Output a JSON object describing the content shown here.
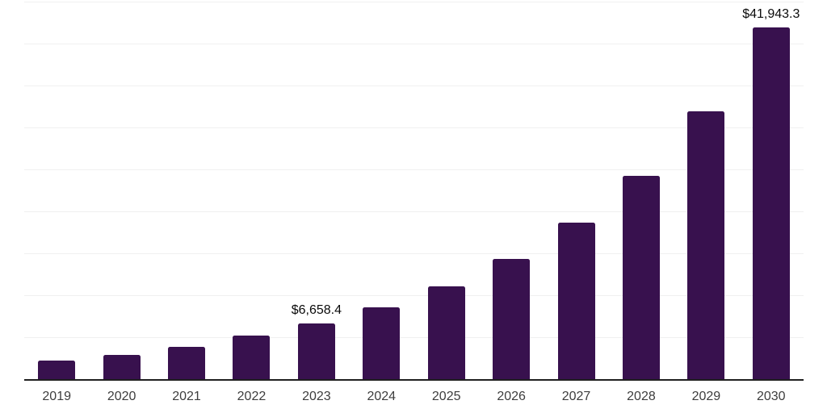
{
  "chart_data": {
    "type": "bar",
    "categories": [
      "2019",
      "2020",
      "2021",
      "2022",
      "2023",
      "2024",
      "2025",
      "2026",
      "2027",
      "2028",
      "2029",
      "2030"
    ],
    "values": [
      2210,
      2880,
      3840,
      5180,
      6658.4,
      8540,
      11040,
      14300,
      18620,
      24280,
      31960,
      41943.3
    ],
    "data_labels": {
      "2023": "$6,658.4",
      "2030": "$41,943.3"
    },
    "title": "",
    "xlabel": "",
    "ylabel": "",
    "ylim": [
      0,
      45000
    ],
    "grid_interval": 5000,
    "grid": true,
    "legend": "none",
    "y_tick_labels_visible": false
  },
  "colors": {
    "background": "#ffffff",
    "bar": "#38114E",
    "gridline": "#f0f0f0",
    "axis_line": "#1f1f1f",
    "tick_label": "#3d3d3d",
    "data_label": "#0a0a0a"
  }
}
